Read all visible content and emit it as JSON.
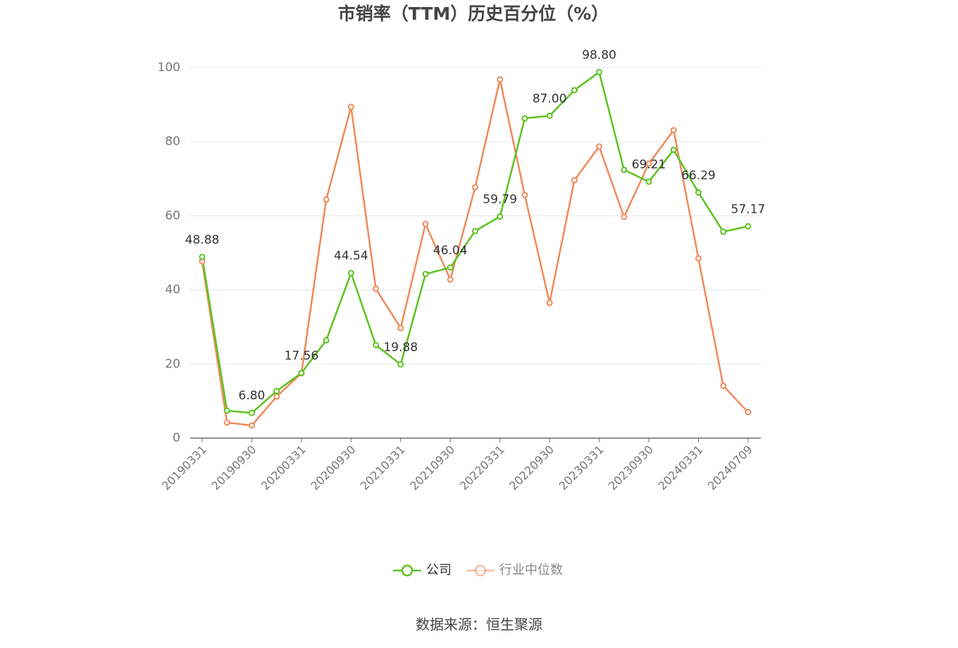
{
  "chart_data": {
    "type": "line",
    "title": "市销率（TTM）历史百分位（%）",
    "categories": [
      "20190331",
      null,
      "20190930",
      null,
      "20200331",
      null,
      "20200930",
      null,
      "20210331",
      null,
      "20210930",
      null,
      "20220331",
      null,
      "20220930",
      null,
      "20230331",
      null,
      "20230930",
      null,
      "20240331",
      null,
      "20240709"
    ],
    "series": [
      {
        "name": "公司",
        "color": "#5cc220",
        "values": [
          48.88,
          7.4,
          6.8,
          12.7,
          17.56,
          26.4,
          44.54,
          25.1,
          19.88,
          44.3,
          46.04,
          55.9,
          59.79,
          86.3,
          87.0,
          93.9,
          98.8,
          72.4,
          69.21,
          77.8,
          66.29,
          55.7,
          57.17
        ],
        "value_labels": [
          "48.88",
          null,
          "6.80",
          null,
          "17.56",
          null,
          "44.54",
          null,
          "19.88",
          null,
          "46.04",
          null,
          "59.79",
          null,
          "87.00",
          null,
          "98.80",
          null,
          "69.21",
          null,
          "66.29",
          null,
          "57.17"
        ]
      },
      {
        "name": "行业中位数",
        "color": "#f0895a",
        "values": [
          47.7,
          4.2,
          3.4,
          11.2,
          17.5,
          64.4,
          89.4,
          40.3,
          29.7,
          57.8,
          42.8,
          67.7,
          96.8,
          65.6,
          36.5,
          69.6,
          78.7,
          59.7,
          74.1,
          83.1,
          48.5,
          14.1,
          7.0
        ]
      }
    ],
    "ylim": [
      0,
      100
    ],
    "yticks": [
      0,
      20,
      40,
      60,
      80,
      100
    ],
    "grid": true,
    "source": "数据来源：恒生聚源"
  }
}
